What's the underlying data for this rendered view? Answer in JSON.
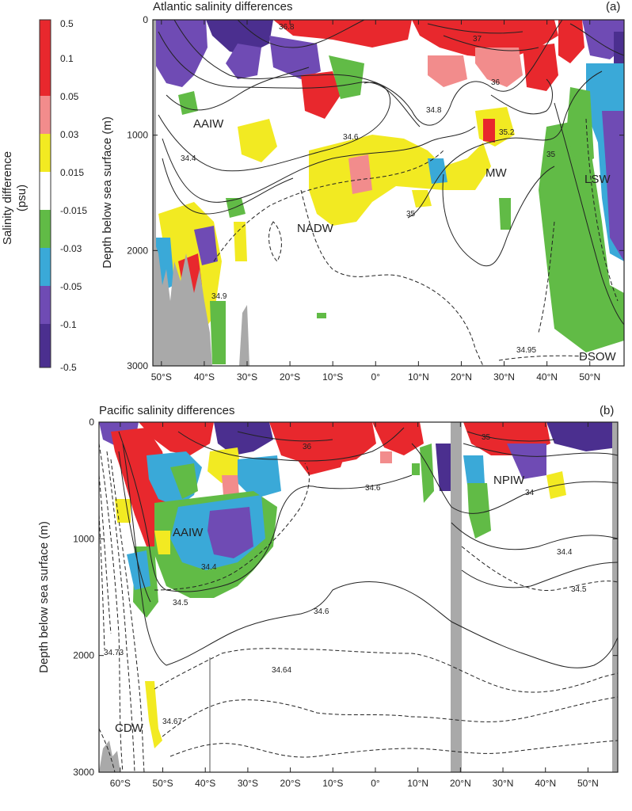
{
  "colors": {
    "red": "#e8282d",
    "pink": "#f28c8c",
    "yellow": "#f2ea22",
    "white": "#ffffff",
    "green": "#61bb46",
    "cyan": "#3aa9d8",
    "blue": "#6f4bb4",
    "indigo": "#4b2f8f",
    "bathymetry": "#a9a9a9"
  },
  "chart_data": [
    {
      "type": "heatmap",
      "title": "Atlantic salinity differences",
      "panel": "(a)",
      "ylabel": "Depth below sea surface (m)",
      "xticks": [
        "50°S",
        "40°S",
        "30°S",
        "20°S",
        "10°S",
        "0°",
        "10°N",
        "20°N",
        "30°N",
        "40°N",
        "50°N"
      ],
      "x": [
        -50,
        -40,
        -30,
        -20,
        -10,
        0,
        10,
        20,
        30,
        40,
        50
      ],
      "xlim": [
        -52,
        58
      ],
      "yticks": [
        "0",
        "1000",
        "2000",
        "3000"
      ],
      "ylim": [
        0,
        3000
      ],
      "contour_labels": [
        "36.8",
        "37",
        "36",
        "34.8",
        "35.2",
        "34.6",
        "34.4",
        "35",
        "35",
        "34.9",
        "34.95"
      ],
      "water_masses": [
        "AAIW",
        "NADW",
        "MW",
        "LSW",
        "DSOW"
      ]
    },
    {
      "type": "heatmap",
      "title": "Pacific salinity differences",
      "panel": "(b)",
      "ylabel": "Depth below sea surface (m)",
      "xticks": [
        "60°S",
        "50°S",
        "40°S",
        "30°S",
        "20°S",
        "10°S",
        "0°",
        "10°N",
        "20°N",
        "30°N",
        "40°N",
        "50°N"
      ],
      "x": [
        -60,
        -50,
        -40,
        -30,
        -20,
        -10,
        0,
        10,
        20,
        30,
        40,
        50
      ],
      "xlim": [
        -65,
        57
      ],
      "yticks": [
        "0",
        "1000",
        "2000",
        "3000"
      ],
      "ylim": [
        0,
        3000
      ],
      "contour_labels": [
        "36",
        "35",
        "34.6",
        "34",
        "34.4",
        "34.5",
        "34.4",
        "34.5",
        "34.6",
        "34.73",
        "34.64",
        "34.67"
      ],
      "water_masses": [
        "NPIW",
        "AAIW",
        "CDW"
      ]
    }
  ],
  "colorbar": {
    "label_line1": "Salinity difference",
    "label_line2": "(psu)",
    "ticks": [
      "0.5",
      "0.1",
      "0.05",
      "0.03",
      "0.015",
      "-0.015",
      "-0.03",
      "-0.05",
      "-0.1",
      "-0.5"
    ]
  }
}
